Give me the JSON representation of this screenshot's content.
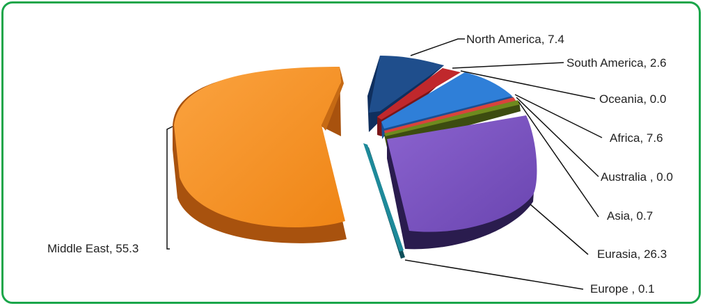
{
  "colors": {
    "border": "#1aa64a"
  },
  "chart_data": {
    "type": "pie",
    "title": "",
    "slices": [
      {
        "label": "North America, 7.4",
        "value": 7.4,
        "color": "#1f4e8c"
      },
      {
        "label": "South America, 2.6",
        "value": 2.6,
        "color": "#c0282c"
      },
      {
        "label": "Oceania, 0.0",
        "value": 0.0,
        "color": "#7f7f7f"
      },
      {
        "label": "Africa, 7.6",
        "value": 7.6,
        "color": "#2f7fd8"
      },
      {
        "label": "Australia , 0.0",
        "value": 0.0,
        "color": "#e0a030"
      },
      {
        "label": "Asia, 0.7",
        "value": 0.7,
        "color": "#d9433c"
      },
      {
        "label": "",
        "value": 1.5,
        "color": "#6e8a1e"
      },
      {
        "label": "Eurasia, 26.3",
        "value": 26.3,
        "color": "#7e57c2"
      },
      {
        "label": "Europe , 0.1",
        "value": 0.1,
        "color": "#1e8a9a"
      },
      {
        "label": "Middle East, 55.3",
        "value": 55.3,
        "color": "#f7941d"
      }
    ]
  }
}
